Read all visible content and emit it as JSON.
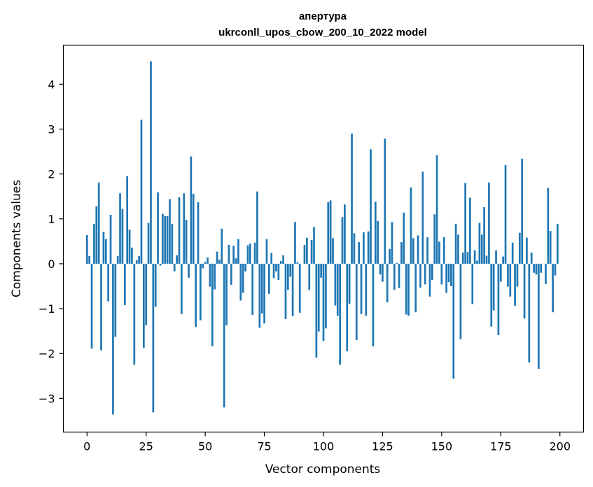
{
  "chart_data": {
    "type": "bar",
    "title": "апертура",
    "subtitle": "ukrconll_upos_cbow_200_10_2022 model",
    "xlabel": "Vector components",
    "ylabel": "Components values",
    "xlim": [
      -10,
      210
    ],
    "ylim": [
      -3.75,
      4.87
    ],
    "x_ticks": [
      0,
      25,
      50,
      75,
      100,
      125,
      150,
      175,
      200
    ],
    "x_tick_labels": [
      "0",
      "25",
      "50",
      "75",
      "100",
      "125",
      "150",
      "175",
      "200"
    ],
    "y_ticks": [
      -3,
      -2,
      -1,
      0,
      1,
      2,
      3,
      4
    ],
    "y_tick_labels": [
      "−3",
      "−2",
      "−1",
      "0",
      "1",
      "2",
      "3",
      "4"
    ],
    "grid": false,
    "bar_color": "#1f77b4",
    "x": [
      0,
      1,
      2,
      3,
      4,
      5,
      6,
      7,
      8,
      9,
      10,
      11,
      12,
      13,
      14,
      15,
      16,
      17,
      18,
      19,
      20,
      21,
      22,
      23,
      24,
      25,
      26,
      27,
      28,
      29,
      30,
      31,
      32,
      33,
      34,
      35,
      36,
      37,
      38,
      39,
      40,
      41,
      42,
      43,
      44,
      45,
      46,
      47,
      48,
      49,
      50,
      51,
      52,
      53,
      54,
      55,
      56,
      57,
      58,
      59,
      60,
      61,
      62,
      63,
      64,
      65,
      66,
      67,
      68,
      69,
      70,
      71,
      72,
      73,
      74,
      75,
      76,
      77,
      78,
      79,
      80,
      81,
      82,
      83,
      84,
      85,
      86,
      87,
      88,
      89,
      90,
      91,
      92,
      93,
      94,
      95,
      96,
      97,
      98,
      99,
      100,
      101,
      102,
      103,
      104,
      105,
      106,
      107,
      108,
      109,
      110,
      111,
      112,
      113,
      114,
      115,
      116,
      117,
      118,
      119,
      120,
      121,
      122,
      123,
      124,
      125,
      126,
      127,
      128,
      129,
      130,
      131,
      132,
      133,
      134,
      135,
      136,
      137,
      138,
      139,
      140,
      141,
      142,
      143,
      144,
      145,
      146,
      147,
      148,
      149,
      150,
      151,
      152,
      153,
      154,
      155,
      156,
      157,
      158,
      159,
      160,
      161,
      162,
      163,
      164,
      165,
      166,
      167,
      168,
      169,
      170,
      171,
      172,
      173,
      174,
      175,
      176,
      177,
      178,
      179,
      180,
      181,
      182,
      183,
      184,
      185,
      186,
      187,
      188,
      189,
      190,
      191,
      192,
      193,
      194,
      195,
      196,
      197,
      198,
      199
    ],
    "values": [
      0.64,
      0.17,
      -1.89,
      0.89,
      1.28,
      1.81,
      -1.93,
      0.71,
      0.55,
      -0.84,
      1.09,
      -3.36,
      -1.63,
      0.17,
      1.57,
      1.22,
      -0.92,
      1.95,
      0.76,
      0.36,
      -2.25,
      0.08,
      0.17,
      3.21,
      -1.87,
      -1.37,
      0.91,
      4.51,
      -3.31,
      -0.96,
      1.59,
      -0.04,
      1.11,
      1.06,
      1.06,
      1.44,
      0.89,
      -0.17,
      0.19,
      1.48,
      -1.12,
      1.57,
      0.98,
      -0.31,
      2.39,
      1.56,
      -1.41,
      1.37,
      -1.26,
      -0.1,
      0.04,
      0.14,
      -0.51,
      -1.84,
      -0.57,
      0.27,
      0.09,
      0.78,
      -3.2,
      -1.37,
      0.42,
      -0.47,
      0.4,
      0.12,
      0.55,
      -0.82,
      -0.65,
      -0.17,
      0.41,
      0.45,
      -1.14,
      0.47,
      1.61,
      -1.43,
      -1.11,
      -1.33,
      0.55,
      -0.67,
      0.24,
      -0.32,
      -0.17,
      -0.36,
      0.06,
      0.19,
      -1.23,
      -0.58,
      -0.29,
      -1.17,
      0.93,
      0.03,
      -1.09,
      0.0,
      0.42,
      0.58,
      -0.58,
      0.53,
      0.82,
      -2.09,
      -1.51,
      -0.31,
      -1.72,
      -1.44,
      1.37,
      1.41,
      0.57,
      -0.93,
      -1.16,
      -2.25,
      1.04,
      1.32,
      -1.95,
      -0.89,
      2.9,
      0.68,
      -1.7,
      0.48,
      -1.12,
      0.7,
      -1.16,
      0.72,
      2.55,
      -1.84,
      1.38,
      0.95,
      -0.24,
      -0.4,
      2.79,
      -0.86,
      0.33,
      0.93,
      -0.58,
      0.02,
      -0.54,
      0.48,
      1.14,
      -1.13,
      -1.16,
      1.7,
      0.57,
      -1.08,
      0.63,
      -0.53,
      2.05,
      -0.46,
      0.59,
      -0.73,
      -0.36,
      1.1,
      2.42,
      0.49,
      -0.46,
      0.59,
      -0.65,
      -0.41,
      -0.5,
      -2.56,
      0.89,
      0.65,
      -1.68,
      0.25,
      1.8,
      0.26,
      1.47,
      -0.9,
      0.3,
      0.07,
      0.91,
      0.65,
      1.26,
      0.18,
      1.81,
      -1.4,
      -1.04,
      0.3,
      -1.59,
      -0.4,
      0.16,
      2.2,
      -0.51,
      -0.73,
      0.47,
      -0.94,
      -0.51,
      0.69,
      2.34,
      -1.22,
      0.58,
      -2.2,
      0.25,
      -0.2,
      -0.24,
      -2.34,
      -0.2,
      0.0,
      -0.45,
      1.69,
      0.73,
      -1.08,
      -0.26,
      0.89
    ]
  }
}
